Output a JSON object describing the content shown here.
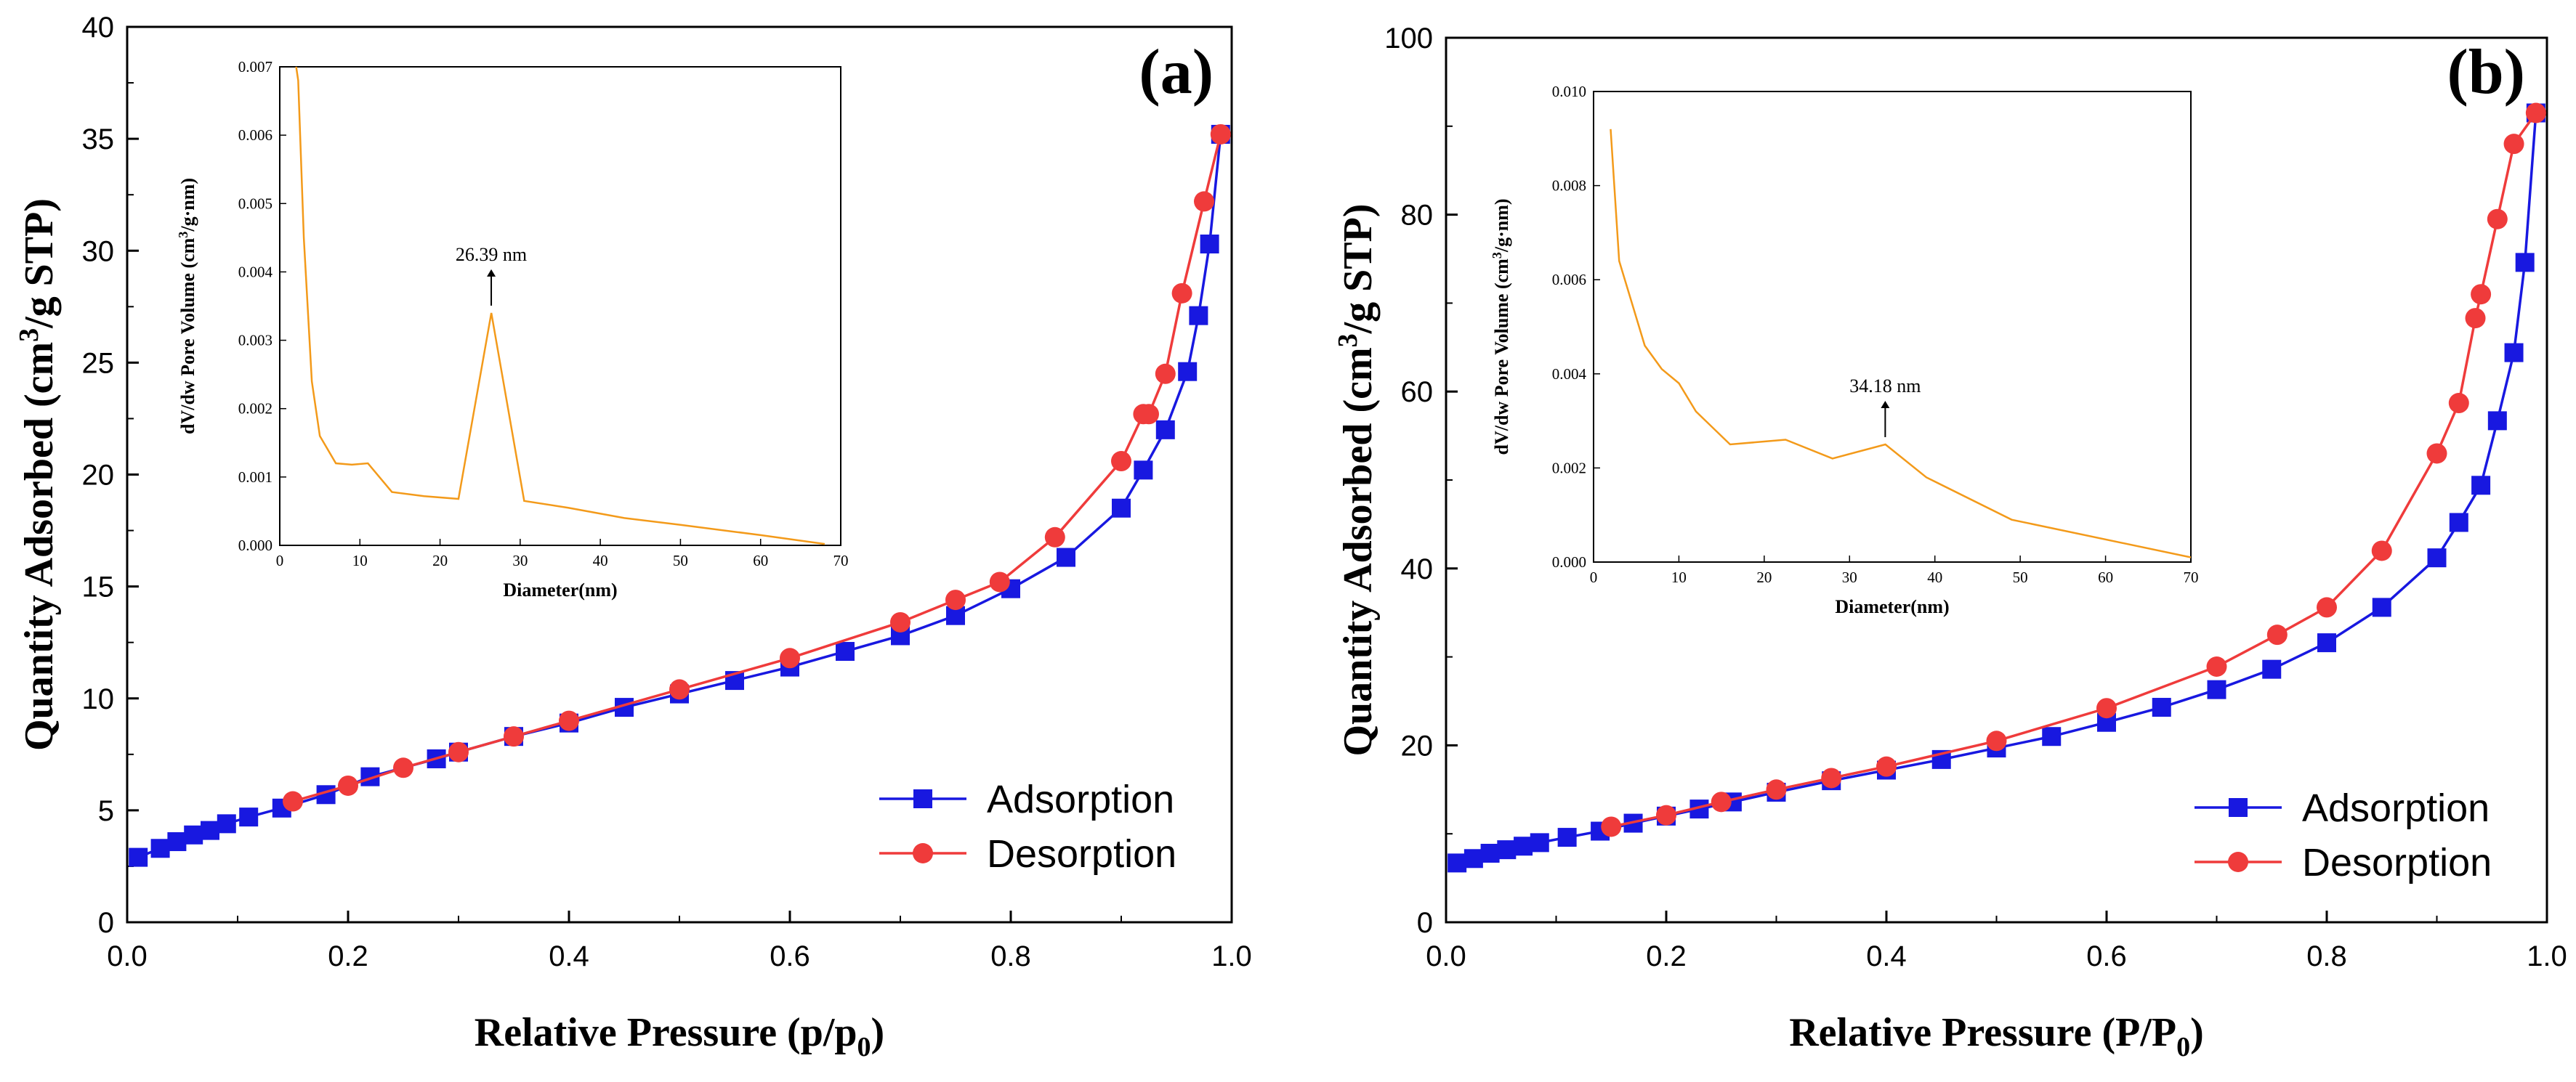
{
  "colors": {
    "adsorption": "#1818e0",
    "desorption": "#ef3b3b",
    "inset_line": "#f39a1a"
  },
  "chart_data": [
    {
      "type": "line",
      "panel_label": "(a)",
      "xlabel_main": "Relative Pressure (p/p",
      "xlabel_sub": "0",
      "xlabel_end": ")",
      "ylabel_main": "Quantity Adsorbed (cm",
      "ylabel_sup": "3",
      "ylabel_end": "/g  STP)",
      "xlim": [
        0,
        1.0
      ],
      "ylim": [
        0,
        40
      ],
      "xticks": [
        0.0,
        0.2,
        0.4,
        0.6,
        0.8,
        1.0
      ],
      "xtick_labels": [
        "0.0",
        "0.2",
        "0.4",
        "0.6",
        "0.8",
        "1.0"
      ],
      "yticks": [
        0,
        5,
        10,
        15,
        20,
        25,
        30,
        35,
        40
      ],
      "ytick_labels": [
        "0",
        "5",
        "10",
        "15",
        "20",
        "25",
        "30",
        "35",
        "40"
      ],
      "legend": [
        "Adsorption",
        "Desorption"
      ],
      "series": [
        {
          "name": "Adsorption",
          "x": [
            0.01,
            0.03,
            0.045,
            0.06,
            0.075,
            0.09,
            0.11,
            0.14,
            0.18,
            0.22,
            0.28,
            0.3,
            0.35,
            0.4,
            0.45,
            0.5,
            0.55,
            0.6,
            0.65,
            0.7,
            0.75,
            0.8,
            0.85,
            0.9,
            0.92,
            0.94,
            0.96,
            0.97,
            0.98,
            0.99
          ],
          "y": [
            2.9,
            3.3,
            3.6,
            3.9,
            4.1,
            4.4,
            4.7,
            5.1,
            5.7,
            6.5,
            7.3,
            7.6,
            8.3,
            8.9,
            9.6,
            10.2,
            10.8,
            11.4,
            12.1,
            12.8,
            13.7,
            14.9,
            16.3,
            18.5,
            20.2,
            22.0,
            24.6,
            27.1,
            30.3,
            35.2
          ]
        },
        {
          "name": "Desorption",
          "x": [
            0.99,
            0.975,
            0.955,
            0.94,
            0.925,
            0.92,
            0.9,
            0.84,
            0.79,
            0.75,
            0.7,
            0.6,
            0.5,
            0.4,
            0.35,
            0.3,
            0.25,
            0.2,
            0.15
          ],
          "y": [
            35.2,
            32.2,
            28.1,
            24.5,
            22.7,
            22.7,
            20.6,
            17.2,
            15.2,
            14.4,
            13.4,
            11.8,
            10.4,
            9.0,
            8.3,
            7.6,
            6.9,
            6.1,
            5.4
          ]
        }
      ],
      "inset": {
        "type": "line",
        "xlabel": "Diameter(nm)",
        "ylabel_pre": "dV/dw Pore Volume (cm",
        "ylabel_sup": "3",
        "ylabel_post": "/g·nm)",
        "xlim": [
          0,
          70
        ],
        "ylim": [
          0,
          0.007
        ],
        "xticks": [
          0,
          10,
          20,
          30,
          40,
          50,
          60,
          70
        ],
        "xtick_labels": [
          "0",
          "10",
          "20",
          "30",
          "40",
          "50",
          "60",
          "70"
        ],
        "yticks": [
          0,
          0.001,
          0.002,
          0.003,
          0.004,
          0.005,
          0.006,
          0.007
        ],
        "ytick_labels": [
          "0.000",
          "0.001",
          "0.002",
          "0.003",
          "0.004",
          "0.005",
          "0.006",
          "0.007"
        ],
        "annotation": "26.39  nm",
        "annotation_x": 26.39,
        "x": [
          1.8,
          2.3,
          3.0,
          4.0,
          5.0,
          7.0,
          9.0,
          11.0,
          14.0,
          18.0,
          22.3,
          26.4,
          30.5,
          36.0,
          43.0,
          50.0,
          60.0,
          68.0
        ],
        "y": [
          0.0072,
          0.0068,
          0.0045,
          0.0024,
          0.0016,
          0.0012,
          0.00118,
          0.0012,
          0.00078,
          0.00072,
          0.00068,
          0.0034,
          0.00065,
          0.00055,
          0.0004,
          0.0003,
          0.00015,
          2e-05
        ]
      }
    },
    {
      "type": "line",
      "panel_label": "(b)",
      "xlabel_main": "Relative Pressure (P/P",
      "xlabel_sub": "0",
      "xlabel_end": ")",
      "ylabel_main": "Quantity Adsorbed (cm",
      "ylabel_sup": "3",
      "ylabel_end": "/g  STP)",
      "xlim": [
        0,
        1.0
      ],
      "ylim": [
        0,
        100
      ],
      "xticks": [
        0.0,
        0.2,
        0.4,
        0.6,
        0.8,
        1.0
      ],
      "xtick_labels": [
        "0.0",
        "0.2",
        "0.4",
        "0.6",
        "0.8",
        "1.0"
      ],
      "yticks": [
        0,
        20,
        40,
        60,
        80,
        100
      ],
      "ytick_labels": [
        "0",
        "20",
        "40",
        "60",
        "80",
        "100"
      ],
      "legend": [
        "Adsorption",
        "Desorption"
      ],
      "series": [
        {
          "name": "Adsorption",
          "x": [
            0.01,
            0.025,
            0.04,
            0.055,
            0.07,
            0.085,
            0.11,
            0.14,
            0.17,
            0.2,
            0.23,
            0.26,
            0.3,
            0.35,
            0.4,
            0.45,
            0.5,
            0.55,
            0.6,
            0.65,
            0.7,
            0.75,
            0.8,
            0.85,
            0.9,
            0.92,
            0.94,
            0.955,
            0.97,
            0.98,
            0.99
          ],
          "y": [
            6.7,
            7.2,
            7.8,
            8.2,
            8.6,
            9.0,
            9.6,
            10.3,
            11.2,
            12.0,
            12.8,
            13.6,
            14.7,
            16.0,
            17.2,
            18.4,
            19.7,
            21.0,
            22.6,
            24.3,
            26.3,
            28.6,
            31.6,
            35.6,
            41.2,
            45.2,
            49.4,
            56.7,
            64.4,
            74.6,
            91.5
          ]
        },
        {
          "name": "Desorption",
          "x": [
            0.99,
            0.97,
            0.955,
            0.94,
            0.935,
            0.92,
            0.9,
            0.85,
            0.8,
            0.755,
            0.7,
            0.6,
            0.5,
            0.4,
            0.35,
            0.3,
            0.25,
            0.2,
            0.15
          ],
          "y": [
            91.5,
            88.0,
            79.5,
            71.0,
            68.3,
            58.7,
            53.0,
            42.0,
            35.6,
            32.5,
            28.9,
            24.2,
            20.5,
            17.6,
            16.3,
            15.0,
            13.6,
            12.1,
            10.8
          ]
        }
      ],
      "inset": {
        "type": "line",
        "xlabel": "Diameter(nm)",
        "ylabel_pre": "dV/dw Pore Volume (cm",
        "ylabel_sup": "3",
        "ylabel_post": "/g·nm)",
        "xlim": [
          0,
          70
        ],
        "ylim": [
          0,
          0.01
        ],
        "xticks": [
          0,
          10,
          20,
          30,
          40,
          50,
          60,
          70
        ],
        "xtick_labels": [
          "0",
          "10",
          "20",
          "30",
          "40",
          "50",
          "60",
          "70"
        ],
        "yticks": [
          0,
          0.002,
          0.004,
          0.006,
          0.008,
          0.01
        ],
        "ytick_labels": [
          "0.000",
          "0.002",
          "0.004",
          "0.006",
          "0.008",
          "0.010"
        ],
        "annotation": "34.18 nm",
        "annotation_x": 34.18,
        "x": [
          2.0,
          3.0,
          4.0,
          6.0,
          8.0,
          10.0,
          12.0,
          16.0,
          22.5,
          28.0,
          34.2,
          39.0,
          49.0,
          70.0
        ],
        "y": [
          0.0092,
          0.0064,
          0.0058,
          0.0046,
          0.0041,
          0.0038,
          0.0032,
          0.0025,
          0.0026,
          0.0022,
          0.0025,
          0.0018,
          0.0009,
          0.0001
        ]
      }
    }
  ]
}
